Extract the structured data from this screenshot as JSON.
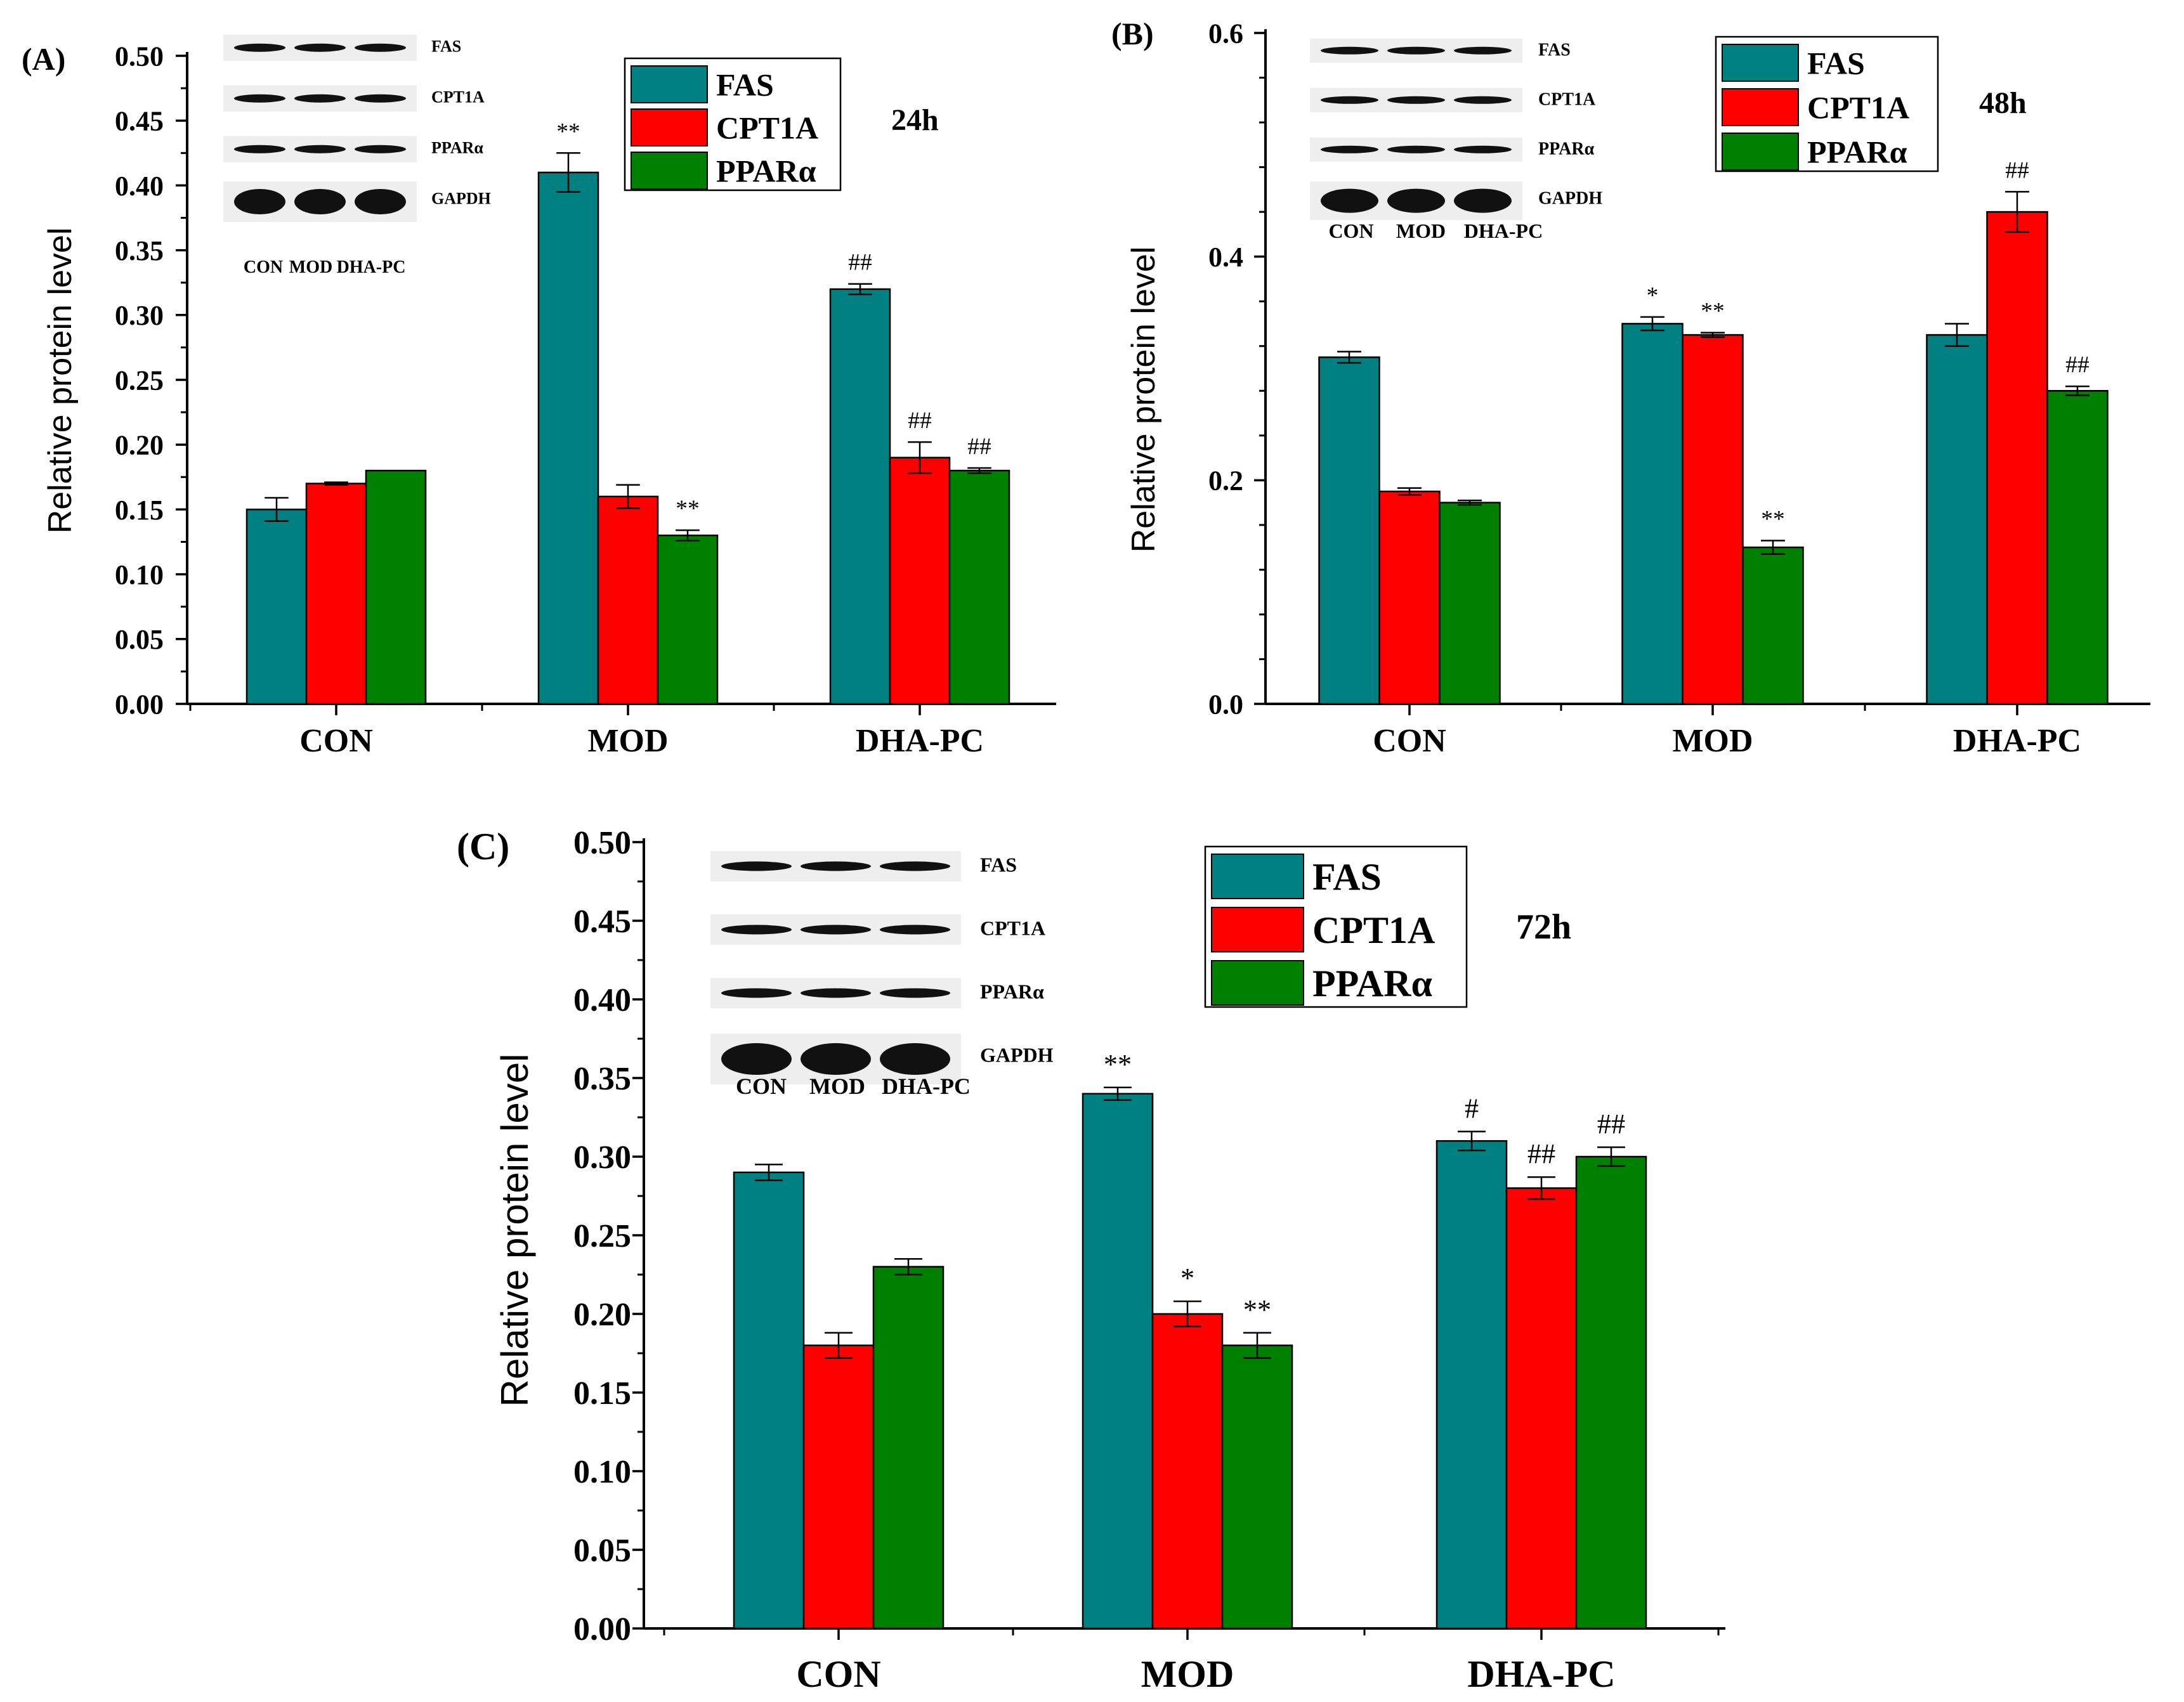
{
  "colors": {
    "FAS": "#008080",
    "CPT1A": "#ff0000",
    "PPARα": "#008000",
    "axis": "#000000",
    "band": "#111111"
  },
  "chart_data": [
    {
      "panel": "(A)",
      "type": "bar",
      "time_label": "24h",
      "ylabel": "Relative protein level",
      "xlabel": "",
      "categories": [
        "CON",
        "MOD",
        "DHA-PC"
      ],
      "ylim": [
        0,
        0.5
      ],
      "yticks": [
        "0.00",
        "0.05",
        "0.10",
        "0.15",
        "0.20",
        "0.25",
        "0.30",
        "0.35",
        "0.40",
        "0.45",
        "0.50"
      ],
      "series": [
        {
          "name": "FAS",
          "values": [
            0.15,
            0.41,
            0.32
          ],
          "errors": [
            0.009,
            0.015,
            0.004
          ],
          "annotations": [
            "",
            "**",
            "##"
          ]
        },
        {
          "name": "CPT1A",
          "values": [
            0.17,
            0.16,
            0.19
          ],
          "errors": [
            0.001,
            0.009,
            0.012
          ],
          "annotations": [
            "",
            "",
            "##"
          ]
        },
        {
          "name": "PPARα",
          "values": [
            0.18,
            0.13,
            0.18
          ],
          "errors": [
            0,
            0.004,
            0.002
          ],
          "annotations": [
            "",
            "**",
            "##"
          ]
        }
      ],
      "legend": {
        "position": "top-right",
        "entries": [
          "FAS",
          "CPT1A",
          "PPARα"
        ]
      },
      "blot": {
        "rows": [
          "FAS",
          "CPT1A",
          "PPARα",
          "GAPDH"
        ],
        "lanes": [
          "CON",
          "MOD",
          "DHA-PC"
        ]
      }
    },
    {
      "panel": "(B)",
      "type": "bar",
      "time_label": "48h",
      "ylabel": "Relative protein level",
      "xlabel": "",
      "categories": [
        "CON",
        "MOD",
        "DHA-PC"
      ],
      "ylim": [
        0,
        0.6
      ],
      "yticks": [
        "0.0",
        "0.2",
        "0.4",
        "0.6"
      ],
      "series": [
        {
          "name": "FAS",
          "values": [
            0.31,
            0.34,
            0.33
          ],
          "errors": [
            0.005,
            0.006,
            0.01
          ],
          "annotations": [
            "",
            "*",
            ""
          ]
        },
        {
          "name": "CPT1A",
          "values": [
            0.19,
            0.33,
            0.44
          ],
          "errors": [
            0.003,
            0.002,
            0.018
          ],
          "annotations": [
            "",
            "**",
            "##"
          ]
        },
        {
          "name": "PPARα",
          "values": [
            0.18,
            0.14,
            0.28
          ],
          "errors": [
            0.002,
            0.006,
            0.004
          ],
          "annotations": [
            "",
            "**",
            "##"
          ]
        }
      ],
      "legend": {
        "position": "top-right",
        "entries": [
          "FAS",
          "CPT1A",
          "PPARα"
        ]
      },
      "blot": {
        "rows": [
          "FAS",
          "CPT1A",
          "PPARα",
          "GAPDH"
        ],
        "lanes": [
          "CON",
          "MOD",
          "DHA-PC"
        ]
      }
    },
    {
      "panel": "(C)",
      "type": "bar",
      "time_label": "72h",
      "ylabel": "Relative protein level",
      "xlabel": "",
      "categories": [
        "CON",
        "MOD",
        "DHA-PC"
      ],
      "ylim": [
        0,
        0.5
      ],
      "yticks": [
        "0.00",
        "0.05",
        "0.10",
        "0.15",
        "0.20",
        "0.25",
        "0.30",
        "0.35",
        "0.40",
        "0.45",
        "0.50"
      ],
      "series": [
        {
          "name": "FAS",
          "values": [
            0.29,
            0.34,
            0.31
          ],
          "errors": [
            0.005,
            0.004,
            0.006
          ],
          "annotations": [
            "",
            "**",
            "#"
          ]
        },
        {
          "name": "CPT1A",
          "values": [
            0.18,
            0.2,
            0.28
          ],
          "errors": [
            0.008,
            0.008,
            0.007
          ],
          "annotations": [
            "",
            "*",
            "##"
          ]
        },
        {
          "name": "PPARα",
          "values": [
            0.23,
            0.18,
            0.3
          ],
          "errors": [
            0.005,
            0.008,
            0.006
          ],
          "annotations": [
            "",
            "**",
            "##"
          ]
        }
      ],
      "legend": {
        "position": "top-center",
        "entries": [
          "FAS",
          "CPT1A",
          "PPARα"
        ]
      },
      "blot": {
        "rows": [
          "FAS",
          "CPT1A",
          "PPARα",
          "GAPDH"
        ],
        "lanes": [
          "CON",
          "MOD",
          "DHA-PC"
        ]
      }
    }
  ]
}
